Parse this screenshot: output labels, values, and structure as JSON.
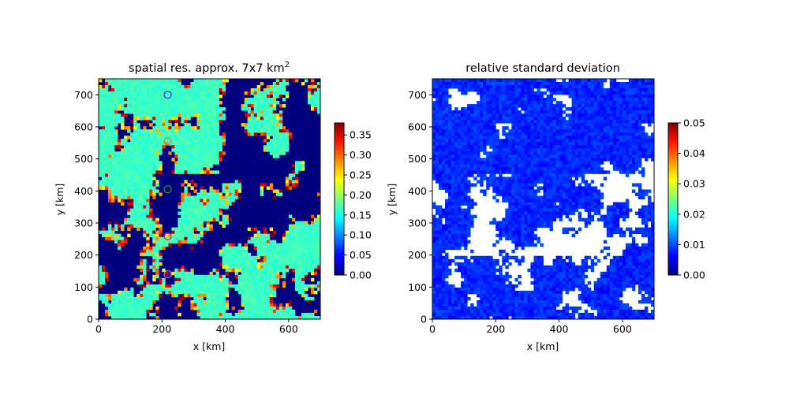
{
  "chart_data": [
    {
      "type": "heatmap",
      "title": "spatial res. approx. 7x7 km",
      "title_superscript": "2",
      "xlabel": "x [km]",
      "ylabel": "y [km]",
      "xlim": [
        0,
        700
      ],
      "ylim": [
        0,
        750
      ],
      "xticks": [
        "0",
        "200",
        "400",
        "600"
      ],
      "yticks": [
        "0",
        "100",
        "200",
        "300",
        "400",
        "500",
        "600",
        "700"
      ],
      "colormap": "jet",
      "colorbar": {
        "min": 0.0,
        "max": 0.38,
        "ticks": [
          "0.00",
          "0.05",
          "0.10",
          "0.15",
          "0.20",
          "0.25",
          "0.30",
          "0.35"
        ]
      },
      "markers": [
        {
          "x": 218,
          "y": 700,
          "color": "#2b2bd6"
        },
        {
          "x": 218,
          "y": 555,
          "color": "#c87a1e"
        },
        {
          "x": 218,
          "y": 405,
          "color": "#2ca02c"
        },
        {
          "x": 218,
          "y": 258,
          "color": "#d62728"
        },
        {
          "x": 218,
          "y": 140,
          "color": "#e377c2"
        }
      ]
    },
    {
      "type": "heatmap",
      "title": "relative standard deviation",
      "xlabel": "x [km]",
      "ylabel": "y [km]",
      "xlim": [
        0,
        700
      ],
      "ylim": [
        0,
        750
      ],
      "xticks": [
        "0",
        "200",
        "400",
        "600"
      ],
      "yticks": [
        "0",
        "100",
        "200",
        "300",
        "400",
        "500",
        "600",
        "700"
      ],
      "colormap": "jet",
      "colorbar": {
        "min": 0.0,
        "max": 0.05,
        "ticks": [
          "0.00",
          "0.01",
          "0.02",
          "0.03",
          "0.04",
          "0.05"
        ]
      }
    }
  ]
}
